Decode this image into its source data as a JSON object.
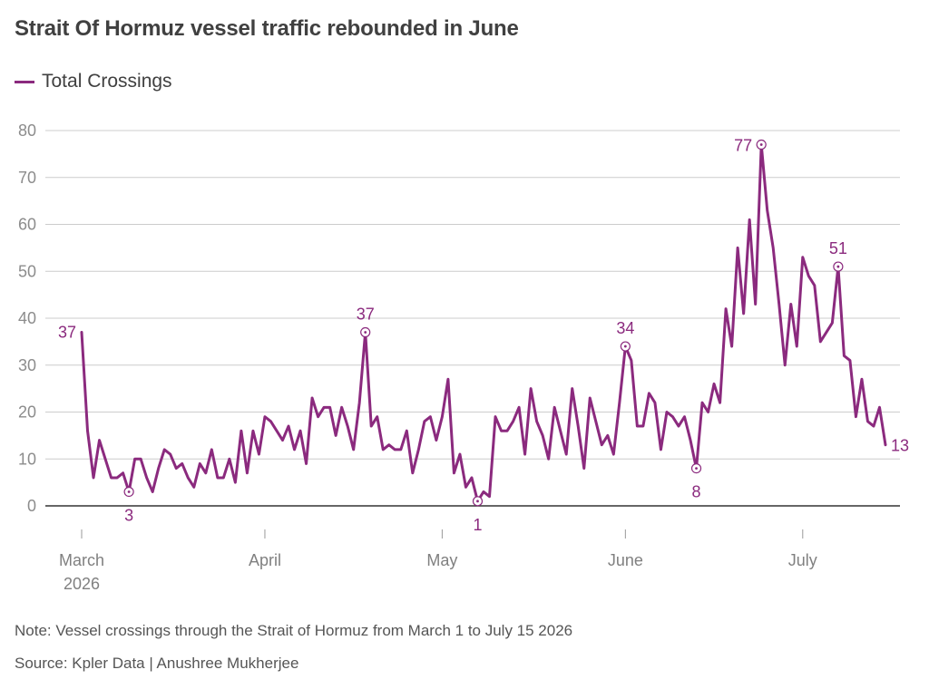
{
  "title": "Strait Of Hormuz vessel traffic rebounded in June",
  "note": "Note: Vessel crossings through the Strait of Hormuz from March 1 to July 15 2026",
  "source": "Source: Kpler Data | Anushree Mukherjee",
  "colors": {
    "series": "#8b2a7e",
    "grid": "#cccccc",
    "axis": "#333333"
  },
  "chart_data": {
    "type": "line",
    "title": "Strait Of Hormuz vessel traffic rebounded in June",
    "xlabel": "",
    "ylabel": "",
    "ylim": [
      0,
      80
    ],
    "yticks": [
      0,
      10,
      20,
      30,
      40,
      50,
      60,
      70,
      80
    ],
    "xlim": [
      "2026-03-01",
      "2026-07-15"
    ],
    "xticks": [
      {
        "date": "2026-03-01",
        "label": [
          "March",
          "2026"
        ]
      },
      {
        "date": "2026-04-01",
        "label": [
          "April"
        ]
      },
      {
        "date": "2026-05-01",
        "label": [
          "May"
        ]
      },
      {
        "date": "2026-06-01",
        "label": [
          "June"
        ]
      },
      {
        "date": "2026-07-01",
        "label": [
          "July"
        ]
      }
    ],
    "grid": true,
    "legend": "top-left",
    "series": [
      {
        "name": "Total Crossings",
        "start_date": "2026-03-01",
        "values": [
          37,
          16,
          6,
          14,
          10,
          6,
          6,
          7,
          3,
          10,
          10,
          6,
          3,
          8,
          12,
          11,
          8,
          9,
          6,
          4,
          9,
          7,
          12,
          6,
          6,
          10,
          5,
          16,
          7,
          16,
          11,
          19,
          18,
          16,
          14,
          17,
          12,
          16,
          9,
          23,
          19,
          21,
          21,
          15,
          21,
          17,
          12,
          22,
          37,
          17,
          19,
          12,
          13,
          12,
          12,
          16,
          7,
          12,
          18,
          19,
          14,
          19,
          27,
          7,
          11,
          4,
          6,
          1,
          3,
          2,
          19,
          16,
          16,
          18,
          21,
          11,
          25,
          18,
          15,
          10,
          21,
          16,
          11,
          25,
          17,
          8,
          23,
          18,
          13,
          15,
          11,
          22,
          34,
          31,
          17,
          17,
          24,
          22,
          12,
          20,
          19,
          17,
          19,
          14,
          8,
          22,
          20,
          26,
          22,
          42,
          34,
          55,
          41,
          61,
          43,
          77,
          63,
          55,
          43,
          30,
          43,
          34,
          53,
          49,
          47,
          35,
          37,
          39,
          51,
          32,
          31,
          19,
          27,
          18,
          17,
          21,
          13
        ]
      }
    ],
    "annotations": [
      {
        "date": "2026-03-01",
        "value": 37,
        "label": "37",
        "marker": false
      },
      {
        "date": "2026-03-09",
        "value": 3,
        "label": "3",
        "marker": true
      },
      {
        "date": "2026-04-18",
        "value": 37,
        "label": "37",
        "marker": true
      },
      {
        "date": "2026-05-07",
        "value": 1,
        "label": "1",
        "marker": true
      },
      {
        "date": "2026-06-01",
        "value": 34,
        "label": "34",
        "marker": true
      },
      {
        "date": "2026-06-13",
        "value": 8,
        "label": "8",
        "marker": true
      },
      {
        "date": "2026-06-24",
        "value": 77,
        "label": "77",
        "marker": true
      },
      {
        "date": "2026-07-07",
        "value": 51,
        "label": "51",
        "marker": true
      },
      {
        "date": "2026-07-15",
        "value": 13,
        "label": "13",
        "marker": false
      }
    ]
  }
}
